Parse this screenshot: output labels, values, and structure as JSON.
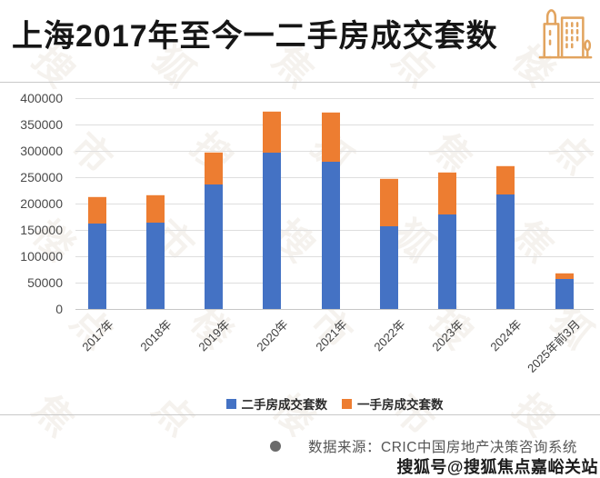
{
  "header": {
    "title": "上海2017年至今一二手房成交套数",
    "icon_color": "#E2A45F"
  },
  "chart_data": {
    "type": "bar",
    "stacked": true,
    "title": "上海2017年至今一二手房成交套数",
    "categories": [
      "2017年",
      "2018年",
      "2019年",
      "2020年",
      "2021年",
      "2022年",
      "2023年",
      "2024年",
      "2025年前3月"
    ],
    "series": [
      {
        "name": "二手房成交套数",
        "color": "#4472C4",
        "values": [
          162000,
          164000,
          236000,
          297000,
          279000,
          157000,
          179000,
          217000,
          57000
        ]
      },
      {
        "name": "一手房成交套数",
        "color": "#ED7D31",
        "values": [
          51000,
          53000,
          62000,
          79000,
          95000,
          91000,
          81000,
          55000,
          12000
        ]
      }
    ],
    "xlabel": "",
    "ylabel": "",
    "ylim": [
      0,
      400000
    ],
    "ytick_step": 50000,
    "grid": true,
    "legend_position": "bottom"
  },
  "footer": {
    "source_text": "数据来源：CRIC中国房地产决策咨询系统",
    "stamp_text": "搜狐号@搜狐焦点嘉峪关站"
  },
  "watermark": {
    "glyphs": [
      "搜",
      "狐",
      "焦",
      "点",
      "楼",
      "市"
    ]
  }
}
